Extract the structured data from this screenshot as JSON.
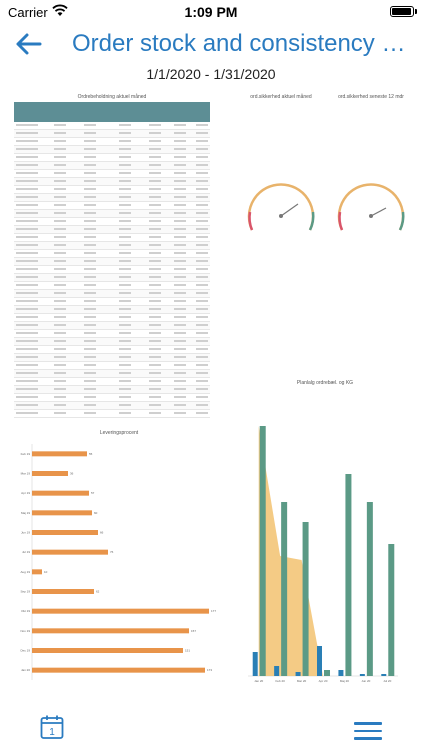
{
  "status": {
    "carrier": "Carrier",
    "time": "1:09 PM"
  },
  "header": {
    "title": "Order stock and consistency of s…",
    "back_icon": "arrow-left-icon"
  },
  "date_range": "1/1/2020 - 1/31/2020",
  "report": {
    "table_title": "Ordrebeholdning aktuel måned",
    "gauge_left_title": "ord.sikkerhed aktuel måned",
    "gauge_right_title": "ord.sikkerhed seneste 12 mdr",
    "bar_chart_title": "Leveringsprocent",
    "combo_chart_title": "Planlalg ordrebæl. og KG"
  },
  "chart_data": [
    {
      "type": "bar",
      "orientation": "horizontal",
      "title": "Leveringsprocent",
      "categories": [
        "Feb 19",
        "Mar 19",
        "Apr 19",
        "Maj 19",
        "Jun 19",
        "Jul 19",
        "Aug 19",
        "Sep 19",
        "Okt 19",
        "Nov 19",
        "Dec 19",
        "Jan 20"
      ],
      "values": [
        55,
        36,
        57,
        60,
        66,
        76,
        10,
        62,
        177,
        157,
        151,
        173
      ],
      "color": "#e8944a"
    },
    {
      "type": "bar",
      "title": "Planlalg ordrebæl. og KG",
      "categories": [
        "Jan 20",
        "Feb 20",
        "Mar 20",
        "Apr 20",
        "Maj 20",
        "Jun 20",
        "Jul 20"
      ],
      "series": [
        {
          "values": [
            12.5,
            8.7,
            7.7,
            0.3,
            10.1,
            8.7,
            6.6
          ],
          "color": "#5b9a86"
        },
        {
          "values": [
            1.2,
            0.5,
            0.2,
            1.5,
            0.3,
            0.1,
            0.1
          ],
          "color": "#2a7fb5"
        }
      ],
      "area_values": [
        12.5,
        6,
        5.8,
        0,
        0,
        0,
        0
      ],
      "area_color": "#f2c270"
    }
  ]
}
